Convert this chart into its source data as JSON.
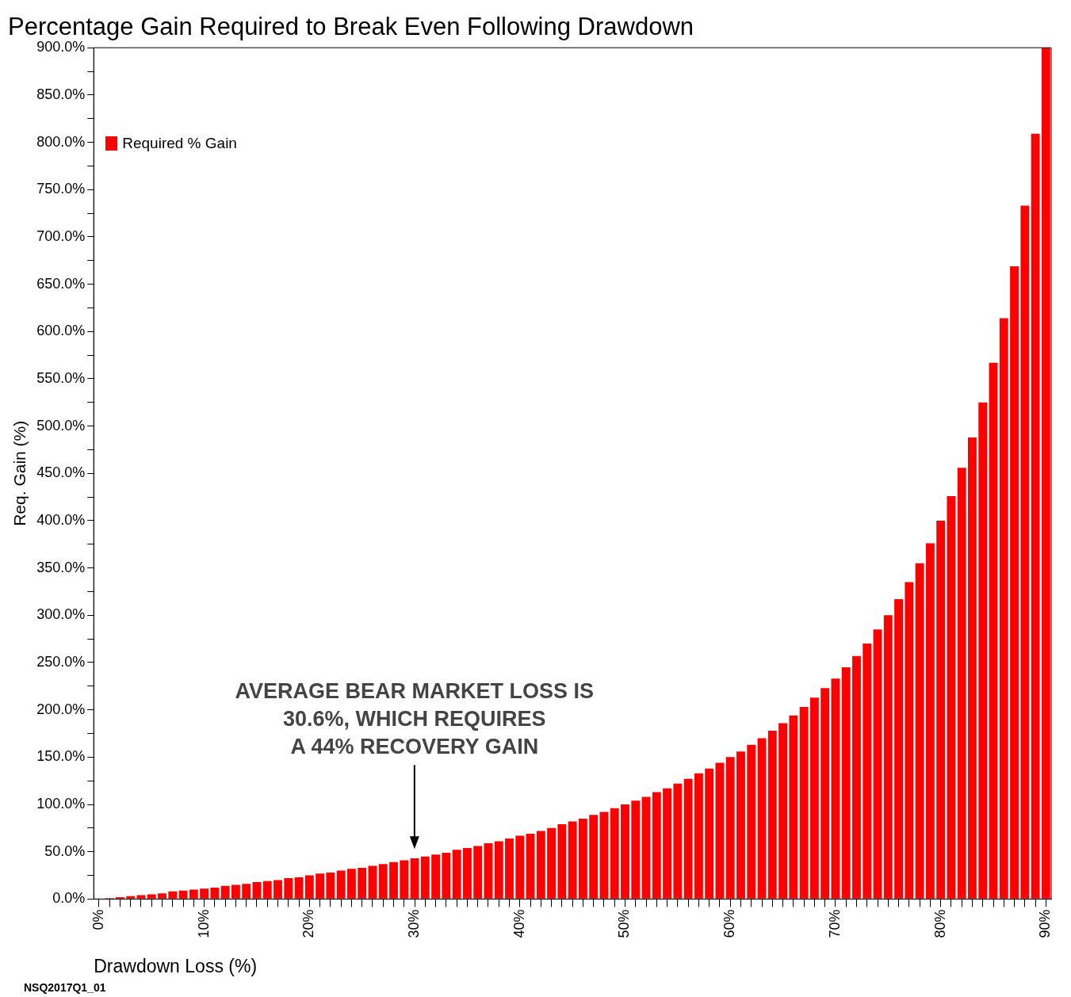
{
  "chart_data": {
    "type": "bar",
    "title": "Percentage Gain Required to Break Even Following Drawdown",
    "xlabel": "Drawdown Loss (%)",
    "ylabel": "Req. Gain (%)",
    "categories": [
      "0%",
      null,
      null,
      null,
      null,
      null,
      null,
      null,
      null,
      null,
      "10%",
      null,
      null,
      null,
      null,
      null,
      null,
      null,
      null,
      null,
      "20%",
      null,
      null,
      null,
      null,
      null,
      null,
      null,
      null,
      null,
      "30%",
      null,
      null,
      null,
      null,
      null,
      null,
      null,
      null,
      null,
      "40%",
      null,
      null,
      null,
      null,
      null,
      null,
      null,
      null,
      null,
      "50%",
      null,
      null,
      null,
      null,
      null,
      null,
      null,
      null,
      null,
      "60%",
      null,
      null,
      null,
      null,
      null,
      null,
      null,
      null,
      null,
      "70%",
      null,
      null,
      null,
      null,
      null,
      null,
      null,
      null,
      null,
      "80%",
      null,
      null,
      null,
      null,
      null,
      null,
      null,
      null,
      null,
      "90%"
    ],
    "series": [
      {
        "name": "Required % Gain",
        "color": "#ff0000",
        "values": [
          0,
          1,
          2,
          3,
          4,
          5,
          6,
          8,
          9,
          10,
          11,
          12,
          14,
          15,
          16,
          18,
          19,
          20,
          22,
          23,
          25,
          27,
          28,
          30,
          32,
          33,
          35,
          37,
          39,
          41,
          43,
          45,
          47,
          49,
          52,
          54,
          56,
          59,
          61,
          64,
          67,
          69,
          72,
          75,
          79,
          82,
          85,
          89,
          92,
          96,
          100,
          104,
          108,
          113,
          117,
          122,
          127,
          133,
          138,
          144,
          150,
          156,
          163,
          170,
          178,
          186,
          194,
          203,
          213,
          223,
          233,
          245,
          257,
          270,
          285,
          300,
          317,
          335,
          355,
          376,
          400,
          426,
          456,
          488,
          525,
          567,
          614,
          669,
          733,
          809,
          900
        ]
      }
    ],
    "ylim": [
      0,
      900
    ],
    "yticks": [
      {
        "value": 0,
        "label": "0.0%"
      },
      {
        "value": 25,
        "label": null
      },
      {
        "value": 50,
        "label": "50.0%"
      },
      {
        "value": 75,
        "label": null
      },
      {
        "value": 100,
        "label": "100.0%"
      },
      {
        "value": 125,
        "label": null
      },
      {
        "value": 150,
        "label": "150.0%"
      },
      {
        "value": 175,
        "label": null
      },
      {
        "value": 200,
        "label": "200.0%"
      },
      {
        "value": 225,
        "label": null
      },
      {
        "value": 250,
        "label": "250.0%"
      },
      {
        "value": 275,
        "label": null
      },
      {
        "value": 300,
        "label": "300.0%"
      },
      {
        "value": 325,
        "label": null
      },
      {
        "value": 350,
        "label": "350.0%"
      },
      {
        "value": 375,
        "label": null
      },
      {
        "value": 400,
        "label": "400.0%"
      },
      {
        "value": 425,
        "label": null
      },
      {
        "value": 450,
        "label": "450.0%"
      },
      {
        "value": 475,
        "label": null
      },
      {
        "value": 500,
        "label": "500.0%"
      },
      {
        "value": 525,
        "label": null
      },
      {
        "value": 550,
        "label": "550.0%"
      },
      {
        "value": 575,
        "label": null
      },
      {
        "value": 600,
        "label": "600.0%"
      },
      {
        "value": 625,
        "label": null
      },
      {
        "value": 650,
        "label": "650.0%"
      },
      {
        "value": 675,
        "label": null
      },
      {
        "value": 700,
        "label": "700.0%"
      },
      {
        "value": 725,
        "label": null
      },
      {
        "value": 750,
        "label": "750.0%"
      },
      {
        "value": 775,
        "label": null
      },
      {
        "value": 800,
        "label": "800.0%"
      },
      {
        "value": 825,
        "label": null
      },
      {
        "value": 850,
        "label": "850.0%"
      },
      {
        "value": 875,
        "label": null
      },
      {
        "value": 900,
        "label": "900.0%"
      }
    ],
    "legend": "top left",
    "annotations": [
      "AVERAGE BEAR MARKET LOSS IS\n30.6%, WHICH REQUIRES\nA 44% RECOVERY GAIN",
      "NSQ2017Q1_01"
    ]
  }
}
